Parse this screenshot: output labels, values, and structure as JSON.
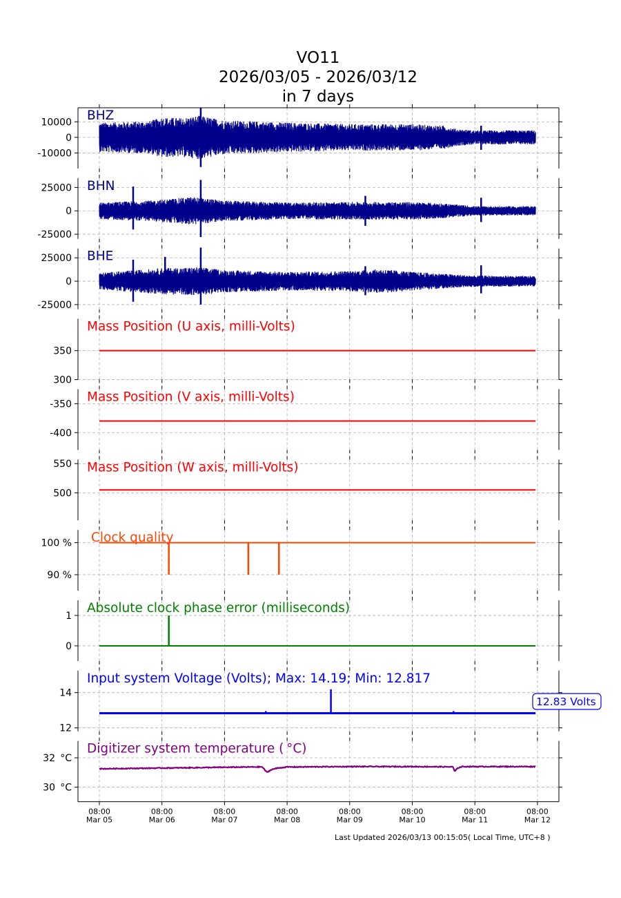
{
  "title": {
    "line1": "VO11",
    "line2": "2026/03/05 - 2026/03/12",
    "line3": "in 7 days"
  },
  "footer": {
    "updated": "Last Updated 2026/03/13 00:15:05( Local Time, UTC+8 )"
  },
  "chart_data": {
    "type": "line",
    "x_ticks": [
      {
        "time": "08:00",
        "date": "Mar 05"
      },
      {
        "time": "08:00",
        "date": "Mar 06"
      },
      {
        "time": "08:00",
        "date": "Mar 07"
      },
      {
        "time": "08:00",
        "date": "Mar 08"
      },
      {
        "time": "08:00",
        "date": "Mar 09"
      },
      {
        "time": "08:00",
        "date": "Mar 10"
      },
      {
        "time": "08:00",
        "date": "Mar 11"
      },
      {
        "time": "08:00",
        "date": "Mar 12"
      }
    ],
    "grid": true,
    "panels": [
      {
        "id": "bhz",
        "label": "BHZ",
        "label_color": "#00008b",
        "line_color": "#00008b",
        "kind": "seismic",
        "ylim": [
          -20000,
          19000
        ],
        "yticks": [
          {
            "v": 10000,
            "t": "10000"
          },
          {
            "v": 0,
            "t": "0"
          },
          {
            "v": -10000,
            "t": "-10000"
          }
        ],
        "envelope": [
          [
            0,
            9500
          ],
          [
            0.8,
            10500
          ],
          [
            1.0,
            13000
          ],
          [
            1.3,
            12500
          ],
          [
            1.6,
            14000
          ],
          [
            2.0,
            11000
          ],
          [
            3.0,
            9500
          ],
          [
            4.0,
            8500
          ],
          [
            5.0,
            8500
          ],
          [
            5.5,
            7500
          ],
          [
            5.7,
            5500
          ],
          [
            6.0,
            4500
          ],
          [
            7.0,
            4500
          ]
        ],
        "spikes": [
          [
            1.62,
            19000,
            -19000
          ],
          [
            6.1,
            7500,
            -8000
          ]
        ]
      },
      {
        "id": "bhn",
        "label": "BHN",
        "label_color": "#00008b",
        "line_color": "#00008b",
        "kind": "seismic",
        "ylim": [
          -30000,
          35000
        ],
        "yticks": [
          {
            "v": 25000,
            "t": "25000"
          },
          {
            "v": 0,
            "t": "0"
          },
          {
            "v": -25000,
            "t": "-25000"
          }
        ],
        "envelope": [
          [
            0,
            9000
          ],
          [
            0.8,
            11000
          ],
          [
            1.5,
            15000
          ],
          [
            2.0,
            11000
          ],
          [
            3.0,
            9000
          ],
          [
            4.0,
            9500
          ],
          [
            5.0,
            9500
          ],
          [
            5.5,
            8000
          ],
          [
            6.0,
            5000
          ],
          [
            7.0,
            5000
          ]
        ],
        "spikes": [
          [
            0.54,
            26000,
            -20000
          ],
          [
            1.62,
            33000,
            -28000
          ],
          [
            4.25,
            16000,
            -16000
          ],
          [
            6.1,
            14000,
            -12000
          ]
        ]
      },
      {
        "id": "bhe",
        "label": "BHE",
        "label_color": "#00008b",
        "line_color": "#00008b",
        "kind": "seismic",
        "ylim": [
          -30000,
          35000
        ],
        "yticks": [
          {
            "v": 25000,
            "t": "25000"
          },
          {
            "v": 0,
            "t": "0"
          },
          {
            "v": -25000,
            "t": "-25000"
          }
        ],
        "envelope": [
          [
            0,
            9000
          ],
          [
            1.0,
            14000
          ],
          [
            1.6,
            15000
          ],
          [
            2.0,
            12000
          ],
          [
            3.0,
            10000
          ],
          [
            4.0,
            11000
          ],
          [
            4.5,
            13000
          ],
          [
            5.0,
            10000
          ],
          [
            5.5,
            8000
          ],
          [
            6.0,
            6000
          ],
          [
            7.0,
            5500
          ]
        ],
        "spikes": [
          [
            0.54,
            23000,
            -22000
          ],
          [
            1.05,
            26000,
            -12000
          ],
          [
            1.62,
            36000,
            -25000
          ],
          [
            4.25,
            16000,
            -15000
          ],
          [
            6.1,
            17000,
            -13000
          ]
        ]
      },
      {
        "id": "mass_u",
        "label": "Mass Position (U axis, milli-Volts)",
        "label_color": "#ff0000",
        "line_color": "#ff0000",
        "kind": "flat",
        "ylim": [
          300,
          405
        ],
        "yticks": [
          {
            "v": 350,
            "t": "350"
          },
          {
            "v": 300,
            "t": "300"
          }
        ],
        "value": 350
      },
      {
        "id": "mass_v",
        "label": "Mass Position (V axis, milli-Volts)",
        "label_color": "#ff0000",
        "line_color": "#ff0000",
        "kind": "flat",
        "ylim": [
          -430,
          -325
        ],
        "yticks": [
          {
            "v": -350,
            "t": "-350"
          },
          {
            "v": -400,
            "t": "-400"
          }
        ],
        "value": -380
      },
      {
        "id": "mass_w",
        "label": "Mass Position (W axis, milli-Volts)",
        "label_color": "#ff0000",
        "line_color": "#ff0000",
        "kind": "flat",
        "ylim": [
          453,
          557
        ],
        "yticks": [
          {
            "v": 550,
            "t": "550"
          },
          {
            "v": 500,
            "t": "500"
          }
        ],
        "value": 505
      },
      {
        "id": "clock_quality",
        "label": "Clock quality",
        "label_color": "#ff4500",
        "line_color": "#ff4500",
        "kind": "steps",
        "ylim": [
          85,
          104
        ],
        "yticks": [
          {
            "v": 100,
            "t": "100 %"
          },
          {
            "v": 90,
            "t": "90 %"
          }
        ],
        "value": 100,
        "drops": [
          [
            1.11,
            90
          ],
          [
            2.38,
            90
          ],
          [
            2.87,
            90
          ]
        ]
      },
      {
        "id": "clock_phase",
        "label": "Absolute clock phase error (milliseconds)",
        "label_color": "#008000",
        "line_color": "#008000",
        "kind": "steps",
        "ylim": [
          -0.5,
          1.5
        ],
        "yticks": [
          {
            "v": 1,
            "t": "1"
          },
          {
            "v": 0,
            "t": "0"
          }
        ],
        "value": 0,
        "drops": [
          [
            1.11,
            1
          ]
        ]
      },
      {
        "id": "voltage",
        "label": "Input system Voltage (Volts);    Max: 14.19; Min: 12.817",
        "label_color": "#0000ff",
        "line_color": "#0000ff",
        "kind": "steps",
        "ylim": [
          11.8,
          15.25
        ],
        "yticks": [
          {
            "v": 14,
            "t": "14"
          },
          {
            "v": 12,
            "t": "12"
          }
        ],
        "value": 12.83,
        "drops": [
          [
            3.7,
            14.19
          ],
          [
            2.66,
            12.95
          ],
          [
            5.66,
            12.95
          ]
        ],
        "current_label": "12.83 Volts"
      },
      {
        "id": "temperature",
        "label": "Digitizer system temperature ( °C)",
        "label_color": "#800080",
        "line_color": "#800080",
        "kind": "temp",
        "ylim": [
          29.0,
          33.15
        ],
        "yticks": [
          {
            "v": 32,
            "t": "32  °C"
          },
          {
            "v": 30,
            "t": "30  °C"
          }
        ],
        "points": [
          [
            0,
            31.25
          ],
          [
            1.0,
            31.3
          ],
          [
            2.0,
            31.35
          ],
          [
            2.6,
            31.38
          ],
          [
            2.68,
            31.0
          ],
          [
            2.75,
            31.2
          ],
          [
            2.85,
            31.3
          ],
          [
            3.0,
            31.37
          ],
          [
            4.0,
            31.4
          ],
          [
            5.0,
            31.4
          ],
          [
            5.65,
            31.38
          ],
          [
            5.68,
            31.05
          ],
          [
            5.72,
            31.3
          ],
          [
            5.8,
            31.4
          ],
          [
            7.0,
            31.4
          ]
        ]
      }
    ]
  }
}
